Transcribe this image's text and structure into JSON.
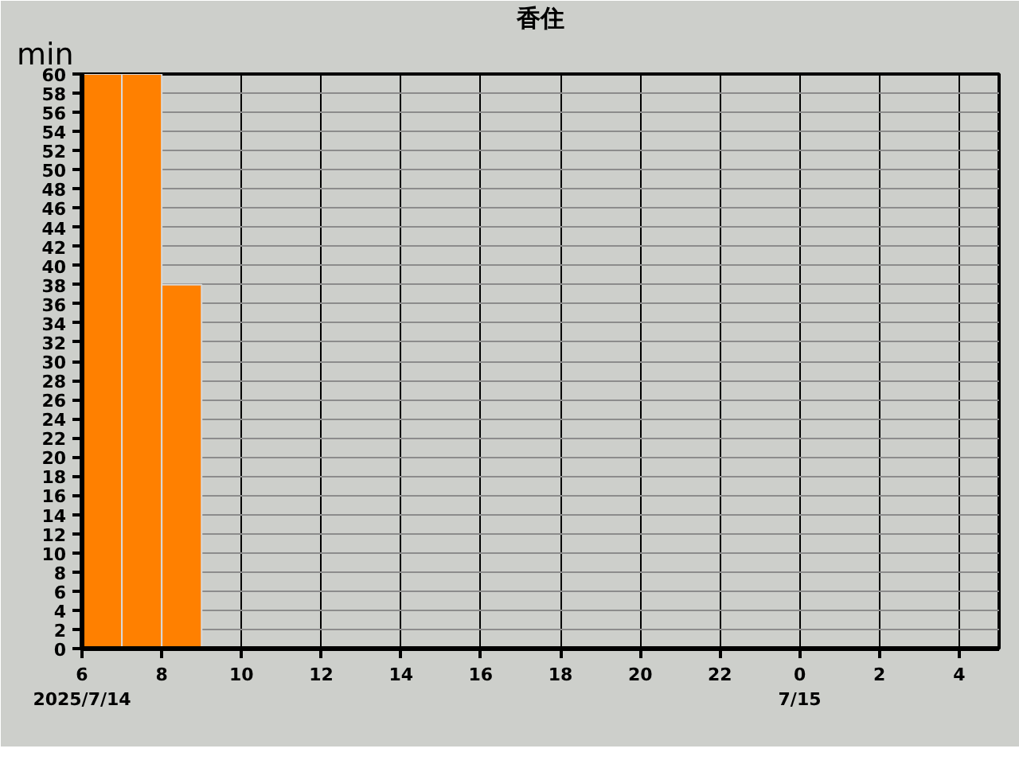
{
  "chart_data": {
    "type": "bar",
    "title": "香住",
    "ylabel": "min",
    "x": [
      "2025-07-14T06:30",
      "2025-07-14T07:30",
      "2025-07-14T08:30"
    ],
    "values": [
      60,
      60,
      38
    ],
    "color": "#ff8000",
    "xlim": [
      "2025-07-14T06:00",
      "2025-07-15T05:00"
    ],
    "xticks": [
      {
        "value": "2025-07-14T06:00",
        "label": "6\n2025/7/14"
      },
      {
        "value": "2025-07-14T08:00",
        "label": "8"
      },
      {
        "value": "2025-07-14T10:00",
        "label": "10"
      },
      {
        "value": "2025-07-14T12:00",
        "label": "12"
      },
      {
        "value": "2025-07-14T14:00",
        "label": "14"
      },
      {
        "value": "2025-07-14T16:00",
        "label": "16"
      },
      {
        "value": "2025-07-14T18:00",
        "label": "18"
      },
      {
        "value": "2025-07-14T20:00",
        "label": "20"
      },
      {
        "value": "2025-07-14T22:00",
        "label": "22"
      },
      {
        "value": "2025-07-15T00:00",
        "label": "0\n7/15"
      },
      {
        "value": "2025-07-15T02:00",
        "label": "2"
      },
      {
        "value": "2025-07-15T04:00",
        "label": "4"
      }
    ],
    "ylim": [
      0,
      60
    ],
    "yticks": [
      0,
      2,
      4,
      6,
      8,
      10,
      12,
      14,
      16,
      18,
      20,
      22,
      24,
      26,
      28,
      30,
      32,
      34,
      36,
      38,
      40,
      42,
      44,
      46,
      48,
      50,
      52,
      54,
      56,
      58,
      60
    ],
    "grid": true
  }
}
